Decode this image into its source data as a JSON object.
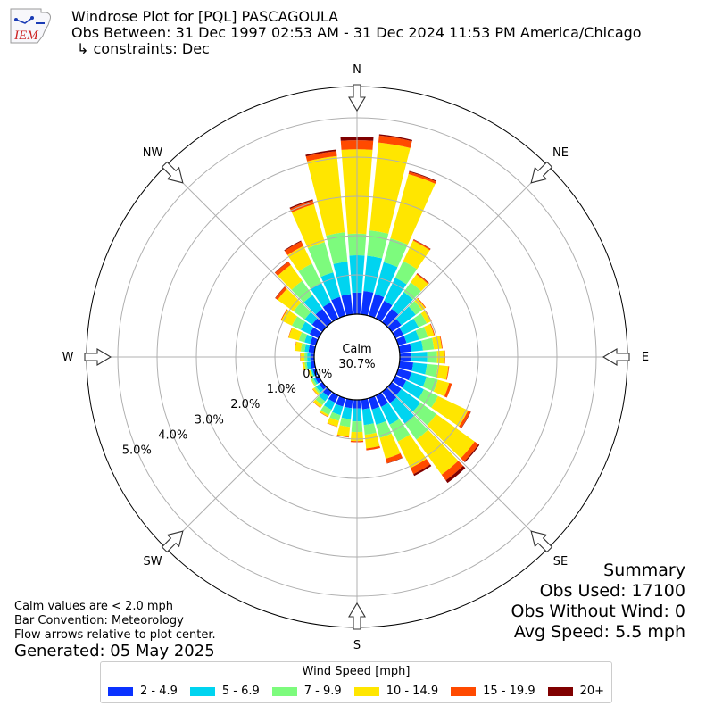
{
  "header": {
    "logo_text": "IEM",
    "title": "Windrose Plot for [PQL] PASCAGOULA",
    "subtitle": "Obs Between: 31 Dec 1997 02:53 AM - 31 Dec 2024 11:53 PM America/Chicago",
    "constraints": "↳ constraints: Dec"
  },
  "compass": {
    "N": "N",
    "NE": "NE",
    "E": "E",
    "SE": "SE",
    "S": "S",
    "SW": "SW",
    "W": "W",
    "NW": "NW"
  },
  "calm": {
    "label": "Calm",
    "value": "30.7%"
  },
  "notes": {
    "calm": "Calm values are < 2.0 mph",
    "convention": "Bar Convention: Meteorology",
    "arrows": "Flow arrows relative to plot center.",
    "generated": "Generated: 05 May 2025"
  },
  "summary": {
    "title": "Summary",
    "obs_used": "Obs Used: 17100",
    "obs_without_wind": "Obs Without Wind: 0",
    "avg_speed": "Avg Speed: 5.5 mph"
  },
  "legend": {
    "title": "Wind Speed [mph]",
    "items": [
      {
        "label": "2 - 4.9",
        "color": "#0a32ff"
      },
      {
        "label": "5 - 6.9",
        "color": "#00d4f0"
      },
      {
        "label": "7 - 9.9",
        "color": "#7dfb7d"
      },
      {
        "label": "10 - 14.9",
        "color": "#ffe600"
      },
      {
        "label": "15 - 19.9",
        "color": "#ff4a00"
      },
      {
        "label": "20+",
        "color": "#800000"
      }
    ]
  },
  "chart_data": {
    "type": "windrose",
    "radial_ticks": [
      "0.0%",
      "1.0%",
      "2.0%",
      "3.0%",
      "4.0%",
      "5.0%"
    ],
    "radial_range": [
      0,
      5.6
    ],
    "calm_percent": 30.7,
    "directions_deg": [
      0,
      10,
      20,
      30,
      40,
      50,
      60,
      70,
      80,
      90,
      100,
      110,
      120,
      130,
      140,
      150,
      160,
      170,
      180,
      190,
      200,
      210,
      220,
      230,
      240,
      250,
      260,
      270,
      280,
      290,
      300,
      310,
      320,
      330,
      340,
      350
    ],
    "cumulative_percent": [
      [
        0.55,
        1.5,
        2.05,
        4.2,
        4.43,
        4.52
      ],
      [
        0.6,
        1.5,
        2.15,
        4.4,
        4.58,
        4.61
      ],
      [
        0.58,
        1.42,
        2.05,
        3.75,
        3.81,
        3.83
      ],
      [
        0.5,
        1.15,
        1.62,
        2.2,
        2.23,
        2.24
      ],
      [
        0.42,
        0.95,
        1.25,
        1.5,
        1.53,
        1.54
      ],
      [
        0.3,
        0.75,
        0.95,
        1.05,
        1.07,
        1.07
      ],
      [
        0.22,
        0.65,
        0.88,
        1.0,
        1.02,
        1.02
      ],
      [
        0.22,
        0.55,
        0.78,
        0.95,
        0.97,
        0.97
      ],
      [
        0.3,
        0.6,
        0.88,
        1.08,
        1.1,
        1.1
      ],
      [
        0.3,
        0.7,
        0.95,
        1.15,
        1.16,
        1.16
      ],
      [
        0.35,
        0.7,
        0.98,
        1.25,
        1.27,
        1.27
      ],
      [
        0.35,
        0.75,
        1.05,
        1.35,
        1.42,
        1.42
      ],
      [
        0.3,
        0.8,
        1.2,
        2.05,
        2.12,
        2.13
      ],
      [
        0.3,
        0.9,
        1.4,
        2.6,
        2.72,
        2.75
      ],
      [
        0.35,
        1.0,
        1.5,
        2.6,
        2.78,
        2.86
      ],
      [
        0.32,
        0.82,
        1.3,
        2.05,
        2.22,
        2.27
      ],
      [
        0.3,
        0.7,
        1.05,
        1.6,
        1.72,
        1.73
      ],
      [
        0.25,
        0.65,
        0.9,
        1.25,
        1.3,
        1.3
      ],
      [
        0.22,
        0.55,
        0.82,
        1.05,
        1.08,
        1.08
      ],
      [
        0.22,
        0.5,
        0.7,
        0.95,
        0.97,
        0.97
      ],
      [
        0.22,
        0.45,
        0.6,
        0.75,
        0.76,
        0.76
      ],
      [
        0.2,
        0.4,
        0.55,
        0.6,
        0.61,
        0.61
      ],
      [
        0.15,
        0.3,
        0.42,
        0.5,
        0.51,
        0.51
      ],
      [
        0.1,
        0.2,
        0.25,
        0.3,
        0.31,
        0.31
      ],
      [
        0.1,
        0.15,
        0.2,
        0.22,
        0.22,
        0.22
      ],
      [
        0.08,
        0.12,
        0.15,
        0.2,
        0.2,
        0.2
      ],
      [
        0.1,
        0.2,
        0.25,
        0.3,
        0.31,
        0.31
      ],
      [
        0.1,
        0.18,
        0.25,
        0.35,
        0.36,
        0.36
      ],
      [
        0.15,
        0.25,
        0.35,
        0.5,
        0.51,
        0.51
      ],
      [
        0.15,
        0.3,
        0.45,
        0.72,
        0.73,
        0.73
      ],
      [
        0.25,
        0.5,
        0.75,
        1.05,
        1.07,
        1.07
      ],
      [
        0.32,
        0.55,
        0.9,
        1.4,
        1.47,
        1.48
      ],
      [
        0.42,
        0.85,
        1.3,
        1.8,
        1.9,
        1.91
      ],
      [
        0.45,
        1.0,
        1.55,
        2.05,
        2.18,
        2.2
      ],
      [
        0.5,
        1.15,
        1.95,
        2.95,
        3.05,
        3.08
      ],
      [
        0.52,
        1.35,
        2.1,
        4.05,
        4.18,
        4.22
      ]
    ],
    "bins": [
      "2 - 4.9",
      "5 - 6.9",
      "7 - 9.9",
      "10 - 14.9",
      "15 - 19.9",
      "20+"
    ]
  }
}
